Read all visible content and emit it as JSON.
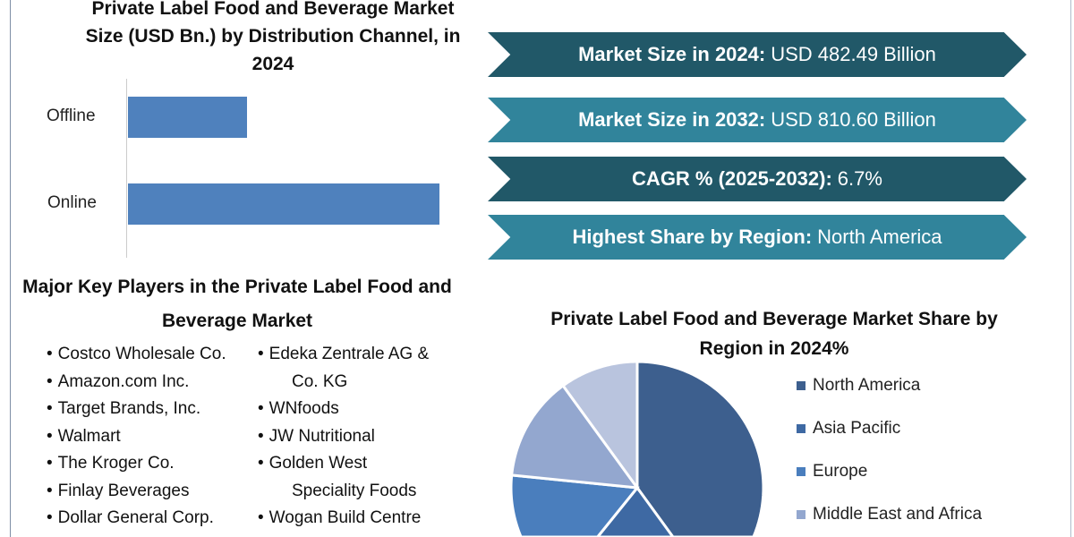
{
  "chart_data": [
    {
      "type": "bar",
      "orientation": "horizontal",
      "title": "Private Label Food and Beverage Market Size (USD Bn.) by Distribution Channel, in 2024",
      "categories": [
        "Offline",
        "Online"
      ],
      "values": [
        133.2,
        349.3
      ],
      "xlabel": "",
      "ylabel": "",
      "grid": false
    },
    {
      "type": "pie",
      "title": "Private Label Food and Beverage Market Share by Region in 2024%",
      "labels": [
        "North America",
        "Asia Pacific",
        "Europe",
        "Middle East and Africa",
        ""
      ],
      "values": [
        40,
        20.8,
        15.8,
        13.4,
        10
      ],
      "colors": [
        "#3d5f8e",
        "#3e69a3",
        "#4a7ebd",
        "#93a7cf",
        "#b9c4de"
      ],
      "legend": "right"
    }
  ],
  "banners": [
    {
      "label": "Market Size in 2024:",
      "value": "USD 482.49 Billion",
      "color": "#215868"
    },
    {
      "label": "Market Size in 2032:",
      "value": "USD 810.60 Billion",
      "color": "#31849b"
    },
    {
      "label": "CAGR % (2025-2032):",
      "value": "6.7%",
      "color": "#215868"
    },
    {
      "label": "Highest Share by Region:",
      "value": "North America",
      "color": "#31849b"
    }
  ],
  "key_players": {
    "title": "Major Key Players in the Private Label Food and Beverage Market",
    "col1": [
      "Costco Wholesale Co.",
      "Amazon.com Inc.",
      "Target Brands, Inc.",
      "Walmart",
      "The Kroger Co.",
      "Finlay Beverages",
      "Dollar General Corp."
    ],
    "col2": [
      {
        "a": "Edeka Zentrale AG &",
        "b": "Co. KG"
      },
      {
        "a": "WNfoods"
      },
      {
        "a": "JW Nutritional"
      },
      {
        "a": "Golden West",
        "b": "Speciality Foods"
      },
      {
        "a": "Wogan Build Centre"
      }
    ]
  }
}
